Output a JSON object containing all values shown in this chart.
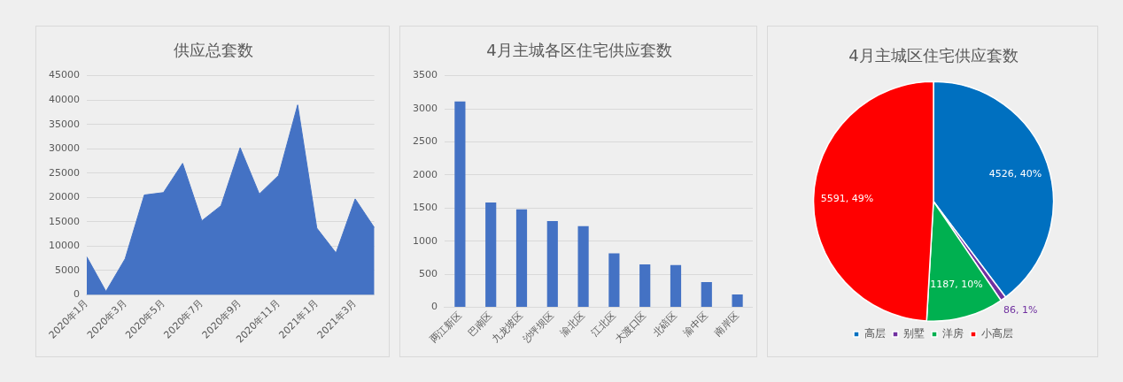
{
  "chart_data": [
    {
      "type": "area",
      "title": "供应总套数",
      "categories": [
        "2020年1月",
        null,
        "2020年3月",
        null,
        "2020年5月",
        null,
        "2020年7月",
        null,
        "2020年9月",
        null,
        "2020年11月",
        null,
        "2021年1月",
        null,
        "2021年3月",
        null
      ],
      "series": [
        {
          "color": "#4472c4",
          "values": [
            7800,
            700,
            7400,
            20500,
            21000,
            27000,
            15200,
            18300,
            30200,
            20700,
            24500,
            39000,
            13700,
            8600,
            19700,
            13800
          ]
        }
      ],
      "ylim": [
        0,
        45000
      ],
      "yticks": [
        0,
        5000,
        10000,
        15000,
        20000,
        25000,
        30000,
        35000,
        40000,
        45000
      ],
      "grid": "y",
      "legend": false
    },
    {
      "type": "bar",
      "title": "4月主城各区住宅供应套数",
      "categories": [
        "两江新区",
        "巴南区",
        "九龙坡区",
        "沙坪坝区",
        "渝北区",
        "江北区",
        "大渡口区",
        "北碚区",
        "渝中区",
        "南岸区"
      ],
      "series": [
        {
          "color": "#4472c4",
          "values": [
            3110,
            1585,
            1480,
            1305,
            1225,
            815,
            650,
            640,
            380,
            195
          ]
        }
      ],
      "ylim": [
        0,
        3500
      ],
      "yticks": [
        0,
        500,
        1000,
        1500,
        2000,
        2500,
        3000,
        3500
      ],
      "grid": "y",
      "legend": false
    },
    {
      "type": "pie",
      "title": "4月主城区住宅供应套数",
      "categories": [
        "高层",
        "别墅",
        "洋房",
        "小高层"
      ],
      "values": [
        4526,
        86,
        1187,
        5591
      ],
      "colors": [
        "#0070c0",
        "#7030a0",
        "#00b050",
        "#ff0000"
      ],
      "value_labels": [
        "4526, 40%",
        "86, 1%",
        "1187, 10%",
        "5591, 49%"
      ],
      "legend": "bottom"
    }
  ]
}
